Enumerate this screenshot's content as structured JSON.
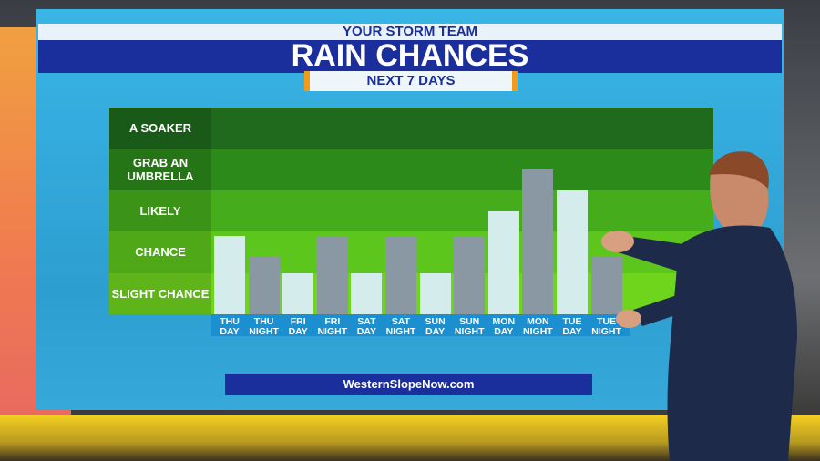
{
  "chart_data": {
    "type": "bar",
    "kicker": "YOUR STORM TEAM",
    "title": "RAIN CHANCES",
    "subtitle": "NEXT 7 DAYS",
    "footer": "WesternSlopeNow.com",
    "bands": [
      "SLIGHT CHANCE",
      "CHANCE",
      "LIKELY",
      "GRAB AN UMBRELLA",
      "A SOAKER"
    ],
    "band_colors": [
      "#6fd41c",
      "#5cc61c",
      "#45ad1c",
      "#2c8a1a",
      "#1f6a1c"
    ],
    "ylim": [
      0,
      5
    ],
    "categories": [
      "THU DAY",
      "THU NIGHT",
      "FRI DAY",
      "FRI NIGHT",
      "SAT DAY",
      "SAT NIGHT",
      "SUN DAY",
      "SUN NIGHT",
      "MON DAY",
      "MON NIGHT",
      "TUE DAY",
      "TUE NIGHT"
    ],
    "values": [
      1.9,
      1.4,
      1.0,
      1.9,
      1.0,
      1.9,
      1.0,
      1.9,
      2.5,
      3.5,
      3.0,
      1.4
    ],
    "colors": [
      "#d4ecec",
      "#8a98a4",
      "#d4ecec",
      "#8a98a4",
      "#d4ecec",
      "#8a98a4",
      "#d4ecec",
      "#8a98a4",
      "#d4ecec",
      "#8a98a4",
      "#d4ecec",
      "#8a98a4"
    ]
  }
}
